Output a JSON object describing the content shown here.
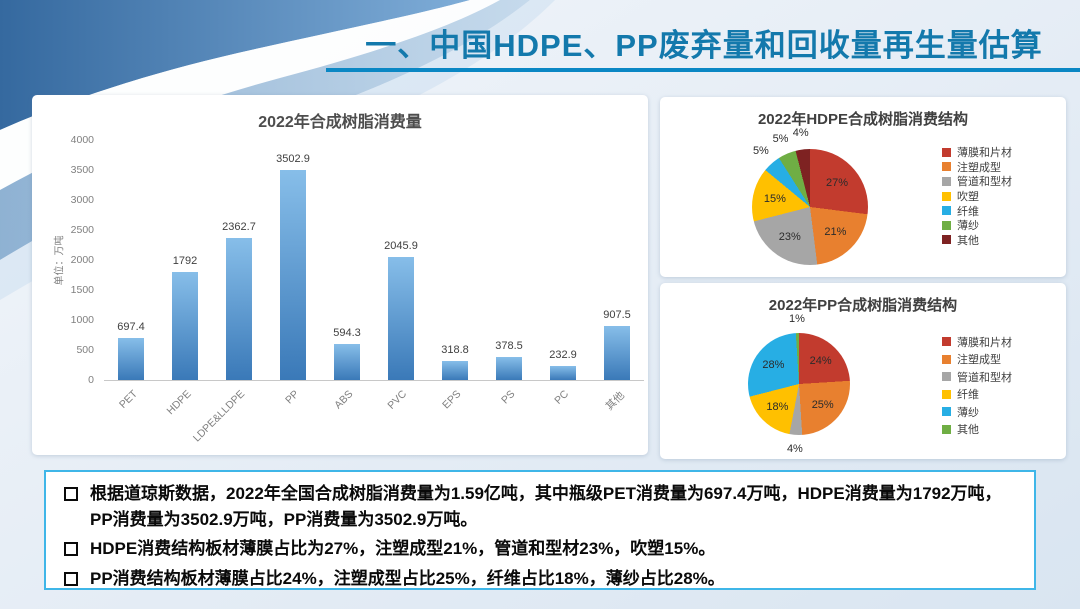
{
  "slide": {
    "title": "一、中国HDPE、PP废弃量和回收量再生量估算",
    "title_color": "#1379AC",
    "underline_color": "#0A87C4",
    "notes_border_color": "#3FB6E8"
  },
  "chart_data": [
    {
      "type": "bar",
      "title": "2022年合成树脂消费量",
      "ylabel": "单位：万吨",
      "xlabel": "",
      "categories": [
        "PET",
        "HDPE",
        "LDPE&LLDPE",
        "PP",
        "ABS",
        "PVC",
        "EPS",
        "PS",
        "PC",
        "其他"
      ],
      "values": [
        697.4,
        1792,
        2362.7,
        3502.9,
        594.3,
        2045.9,
        318.8,
        378.5,
        232.9,
        907.5
      ],
      "ylim": [
        0,
        4000
      ],
      "yticks": [
        0,
        500,
        1000,
        1500,
        2000,
        2500,
        3000,
        3500,
        4000
      ],
      "grid": false,
      "bar_color_top": "#87BEE9",
      "bar_color_bottom": "#3A79B8"
    },
    {
      "type": "pie",
      "title": "2022年HDPE合成树脂消费结构",
      "labels": [
        "薄膜和片材",
        "注塑成型",
        "管道和型材",
        "吹塑",
        "纤维",
        "薄纱",
        "其他"
      ],
      "values": [
        27,
        21,
        23,
        15,
        5,
        5,
        4
      ],
      "colors": [
        "#C23B2E",
        "#E8802F",
        "#A6A6A6",
        "#FFC000",
        "#27AEE4",
        "#6FAE44",
        "#7E2222"
      ],
      "legend_position": "right"
    },
    {
      "type": "pie",
      "title": "2022年PP合成树脂消费结构",
      "labels": [
        "薄膜和片材",
        "注塑成型",
        "管道和型材",
        "纤维",
        "薄纱",
        "其他"
      ],
      "values": [
        24,
        25,
        4,
        18,
        28,
        1
      ],
      "colors": [
        "#C23B2E",
        "#E8802F",
        "#A6A6A6",
        "#FFC000",
        "#27AEE4",
        "#6FAE44"
      ],
      "legend_position": "right"
    }
  ],
  "notes": {
    "items": [
      "根据道琼斯数据，2022年全国合成树脂消费量为1.59亿吨，其中瓶级PET消费量为697.4万吨，HDPE消费量为1792万吨，PP消费量为3502.9万吨，PP消费量为3502.9万吨。",
      "HDPE消费结构板材薄膜占比为27%，注塑成型21%，管道和型材23%，吹塑15%。",
      "PP消费结构板材薄膜占比24%，注塑成型占比25%，纤维占比18%，薄纱占比28%。"
    ]
  }
}
